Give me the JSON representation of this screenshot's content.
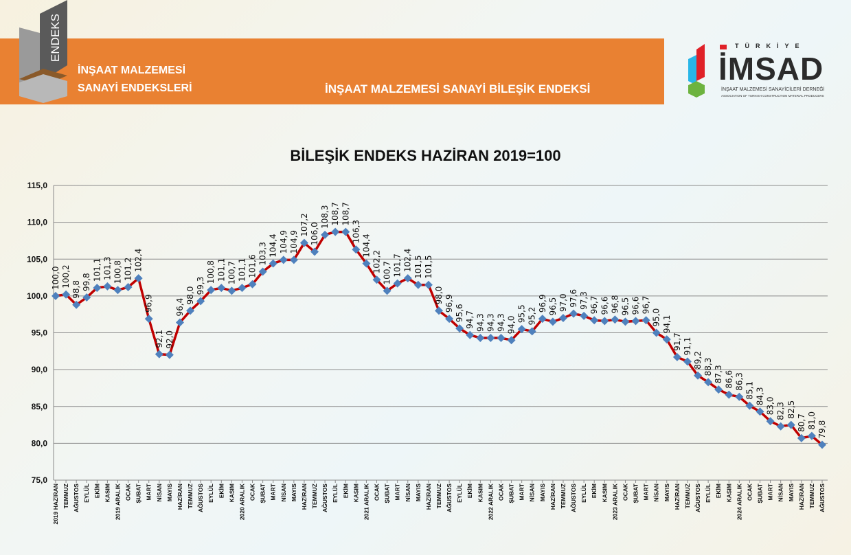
{
  "header": {
    "logo_text": "ENDEKS",
    "left_title_line1": "İNŞAAT MALZEMESİ",
    "left_title_line2": "SANAYİ ENDEKSLERİ",
    "right_title": "İNŞAAT MALZEMESİ SANAYİ BİLEŞİK ENDEKSİ",
    "imsad_top": "TÜRKİYE",
    "imsad_name": "İMSAD",
    "imsad_sub1": "İNŞAAT MALZEMESİ SANAYİCİLERİ DERNEĞİ",
    "imsad_sub2": "ASSOCIATION OF TURKISH CONSTRUCTION MATERIAL PRODUCERS",
    "band_color": "#e98132"
  },
  "chart_data": {
    "type": "line",
    "title": "BİLEŞİK ENDEKS HAZİRAN 2019=100",
    "xlabel": "",
    "ylabel": "",
    "ylim": [
      75,
      115
    ],
    "yticks": [
      "75,0",
      "80,0",
      "85,0",
      "90,0",
      "95,0",
      "100,0",
      "105,0",
      "110,0",
      "115,0"
    ],
    "grid": true,
    "line_color": "#c00000",
    "marker_color": "#4f81bd",
    "categories": [
      "2019 HAZİRAN",
      "TEMMUZ",
      "AĞUSTOS",
      "EYLÜL",
      "EKİM",
      "KASIM",
      "2019 ARALIK",
      "OCAK",
      "ŞUBAT",
      "MART",
      "NİSAN",
      "MAYIS",
      "HAZİRAN",
      "TEMMUZ",
      "AĞUSTOS",
      "EYLÜL",
      "EKİM",
      "KASIM",
      "2020 ARALIK",
      "OCAK",
      "ŞUBAT",
      "MART",
      "NİSAN",
      "MAYIS",
      "HAZİRAN",
      "TEMMUZ",
      "AĞUSTOS",
      "EYLÜL",
      "EKİM",
      "KASIM",
      "2021 ARALIK",
      "OCAK",
      "ŞUBAT",
      "MART",
      "NİSAN",
      "MAYIS",
      "HAZİRAN",
      "TEMMUZ",
      "AĞUSTOS",
      "EYLÜL",
      "EKİM",
      "KASIM",
      "2022 ARALIK",
      "OCAK",
      "ŞUBAT",
      "MART",
      "NİSAN",
      "MAYIS",
      "HAZİRAN",
      "TEMMUZ",
      "AĞUSTOS",
      "EYLÜL",
      "EKİM",
      "KASIM",
      "2023 ARALIK",
      "OCAK",
      "ŞUBAT",
      "MART",
      "NİSAN",
      "MAYIS",
      "HAZİRAN",
      "TEMMUZ",
      "AĞUSTOS",
      "EYLÜL",
      "EKİM",
      "KASIM",
      "2024 ARALIK",
      "OCAK",
      "ŞUBAT",
      "MART",
      "NİSAN",
      "MAYIS",
      "HAZİRAN",
      "TEMMUZ",
      "AĞUSTOS"
    ],
    "values": [
      100.0,
      100.2,
      98.8,
      99.8,
      101.1,
      101.3,
      100.8,
      101.2,
      102.4,
      96.9,
      92.1,
      92.0,
      96.4,
      98.0,
      99.3,
      100.8,
      101.1,
      100.7,
      101.1,
      101.6,
      103.3,
      104.4,
      104.9,
      104.9,
      107.2,
      106.0,
      108.3,
      108.7,
      108.7,
      106.3,
      104.4,
      102.2,
      100.7,
      101.7,
      102.4,
      101.5,
      101.5,
      98.0,
      96.9,
      95.6,
      94.7,
      94.3,
      94.3,
      94.3,
      94.0,
      95.5,
      95.2,
      96.9,
      96.5,
      97.0,
      97.6,
      97.3,
      96.7,
      96.6,
      96.8,
      96.5,
      96.6,
      96.7,
      95.0,
      94.1,
      91.7,
      91.1,
      89.2,
      88.3,
      87.3,
      86.6,
      86.3,
      85.1,
      84.3,
      83.0,
      82.3,
      82.5,
      80.7,
      81.0,
      79.8
    ]
  }
}
